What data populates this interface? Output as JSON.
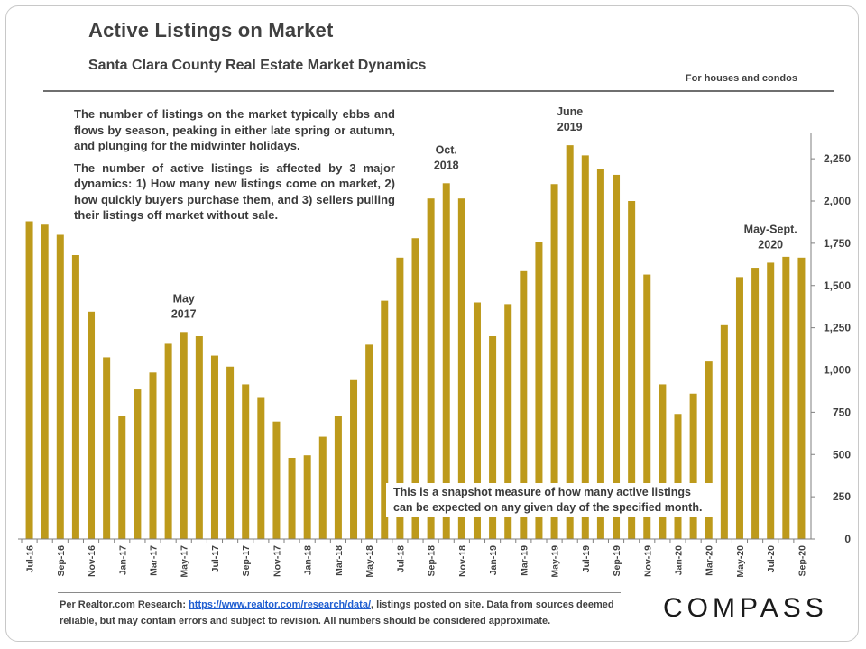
{
  "header": {
    "title": "Active Listings on Market",
    "subtitle": "Santa Clara County Real Estate Market Dynamics",
    "note": "For houses and condos"
  },
  "description": {
    "p1": "The number of listings on the market typically ebbs and flows by season, peaking in either late spring or autumn, and plunging for the midwinter holidays.",
    "p2": "The number of active listings is affected by 3 major dynamics: 1) How many new listings come on market, 2) how quickly buyers purchase them, and 3) sellers pulling their listings off market without sale."
  },
  "callout": "This is a snapshot measure of how many active listings can be expected on any given day of the specified month.",
  "footer": {
    "prefix": "Per Realtor.com Research: ",
    "link": "https://www.realtor.com/research/data/",
    "suffix": ", listings posted on site. Data from sources deemed reliable, but may contain errors and subject to revision. All numbers should be considered approximate.",
    "logo": "COMPASS"
  },
  "colors": {
    "bar": "#bd9a1b",
    "axis": "#7f7f7f",
    "text": "#404040",
    "link": "#1f5ed1"
  },
  "chart_data": {
    "type": "bar",
    "title": "Active Listings on Market",
    "xlabel": "",
    "ylabel": "",
    "ylim": [
      0,
      2400
    ],
    "yticks": [
      0,
      250,
      500,
      750,
      1000,
      1250,
      1500,
      1750,
      2000,
      2250
    ],
    "ytick_labels": [
      "0",
      "250",
      "500",
      "750",
      "1,000",
      "1,250",
      "1,500",
      "1,750",
      "2,000",
      "2,250"
    ],
    "categories": [
      "Jul-16",
      "Aug-16",
      "Sep-16",
      "Oct-16",
      "Nov-16",
      "Dec-16",
      "Jan-17",
      "Feb-17",
      "Mar-17",
      "Apr-17",
      "May-17",
      "Jun-17",
      "Jul-17",
      "Aug-17",
      "Sep-17",
      "Oct-17",
      "Nov-17",
      "Dec-17",
      "Jan-18",
      "Feb-18",
      "Mar-18",
      "Apr-18",
      "May-18",
      "Jun-18",
      "Jul-18",
      "Aug-18",
      "Sep-18",
      "Oct-18",
      "Nov-18",
      "Dec-18",
      "Jan-19",
      "Feb-19",
      "Mar-19",
      "Apr-19",
      "May-19",
      "Jun-19",
      "Jul-19",
      "Aug-19",
      "Sep-19",
      "Oct-19",
      "Nov-19",
      "Dec-19",
      "Jan-20",
      "Feb-20",
      "Mar-20",
      "Apr-20",
      "May-20",
      "Jun-20",
      "Jul-20",
      "Aug-20",
      "Sep-20"
    ],
    "x_tick_labels": [
      "Jul-16",
      "Sep-16",
      "Nov-16",
      "Jan-17",
      "Mar-17",
      "May-17",
      "Jul-17",
      "Sep-17",
      "Nov-17",
      "Jan-18",
      "Mar-18",
      "May-18",
      "Jul-18",
      "Sep-18",
      "Nov-18",
      "Jan-19",
      "Mar-19",
      "May-19",
      "Jul-19",
      "Sep-19",
      "Nov-19",
      "Jan-20",
      "Mar-20",
      "May-20",
      "Jul-20",
      "Sep-20"
    ],
    "values": [
      1880,
      1860,
      1800,
      1680,
      1345,
      1075,
      730,
      885,
      985,
      1155,
      1225,
      1200,
      1085,
      1020,
      915,
      840,
      695,
      480,
      495,
      605,
      730,
      940,
      1150,
      1410,
      1665,
      1780,
      2015,
      2105,
      2015,
      1400,
      1200,
      1390,
      1585,
      1760,
      2100,
      2330,
      2270,
      2190,
      2155,
      2000,
      1565,
      915,
      740,
      860,
      1050,
      1265,
      1550,
      1605,
      1635,
      1670,
      1665
    ],
    "annotations": [
      {
        "category": "May-17",
        "lines": [
          "May",
          "2017"
        ]
      },
      {
        "category": "Oct-18",
        "lines": [
          "Oct.",
          "2018"
        ]
      },
      {
        "category": "Jun-19",
        "lines": [
          "June",
          "2019"
        ]
      },
      {
        "category": "Jul-20",
        "lines": [
          "May-Sept.",
          "2020"
        ]
      }
    ],
    "grid": false,
    "y_axis_side": "right"
  }
}
